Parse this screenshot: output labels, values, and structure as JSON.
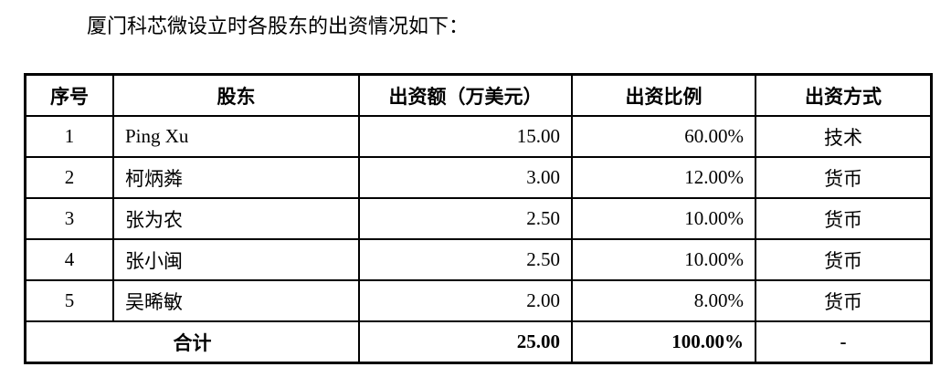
{
  "intro": "厦门科芯微设立时各股东的出资情况如下：",
  "table": {
    "headers": [
      "序号",
      "股东",
      "出资额（万美元）",
      "出资比例",
      "出资方式"
    ],
    "rows": [
      [
        "1",
        "Ping Xu",
        "15.00",
        "60.00%",
        "技术"
      ],
      [
        "2",
        "柯炳粦",
        "3.00",
        "12.00%",
        "货币"
      ],
      [
        "3",
        "张为农",
        "2.50",
        "10.00%",
        "货币"
      ],
      [
        "4",
        "张小闽",
        "2.50",
        "10.00%",
        "货币"
      ],
      [
        "5",
        "吴晞敏",
        "2.00",
        "8.00%",
        "货币"
      ]
    ],
    "total": {
      "label": "合计",
      "amount": "25.00",
      "ratio": "100.00%",
      "method": "-"
    }
  }
}
